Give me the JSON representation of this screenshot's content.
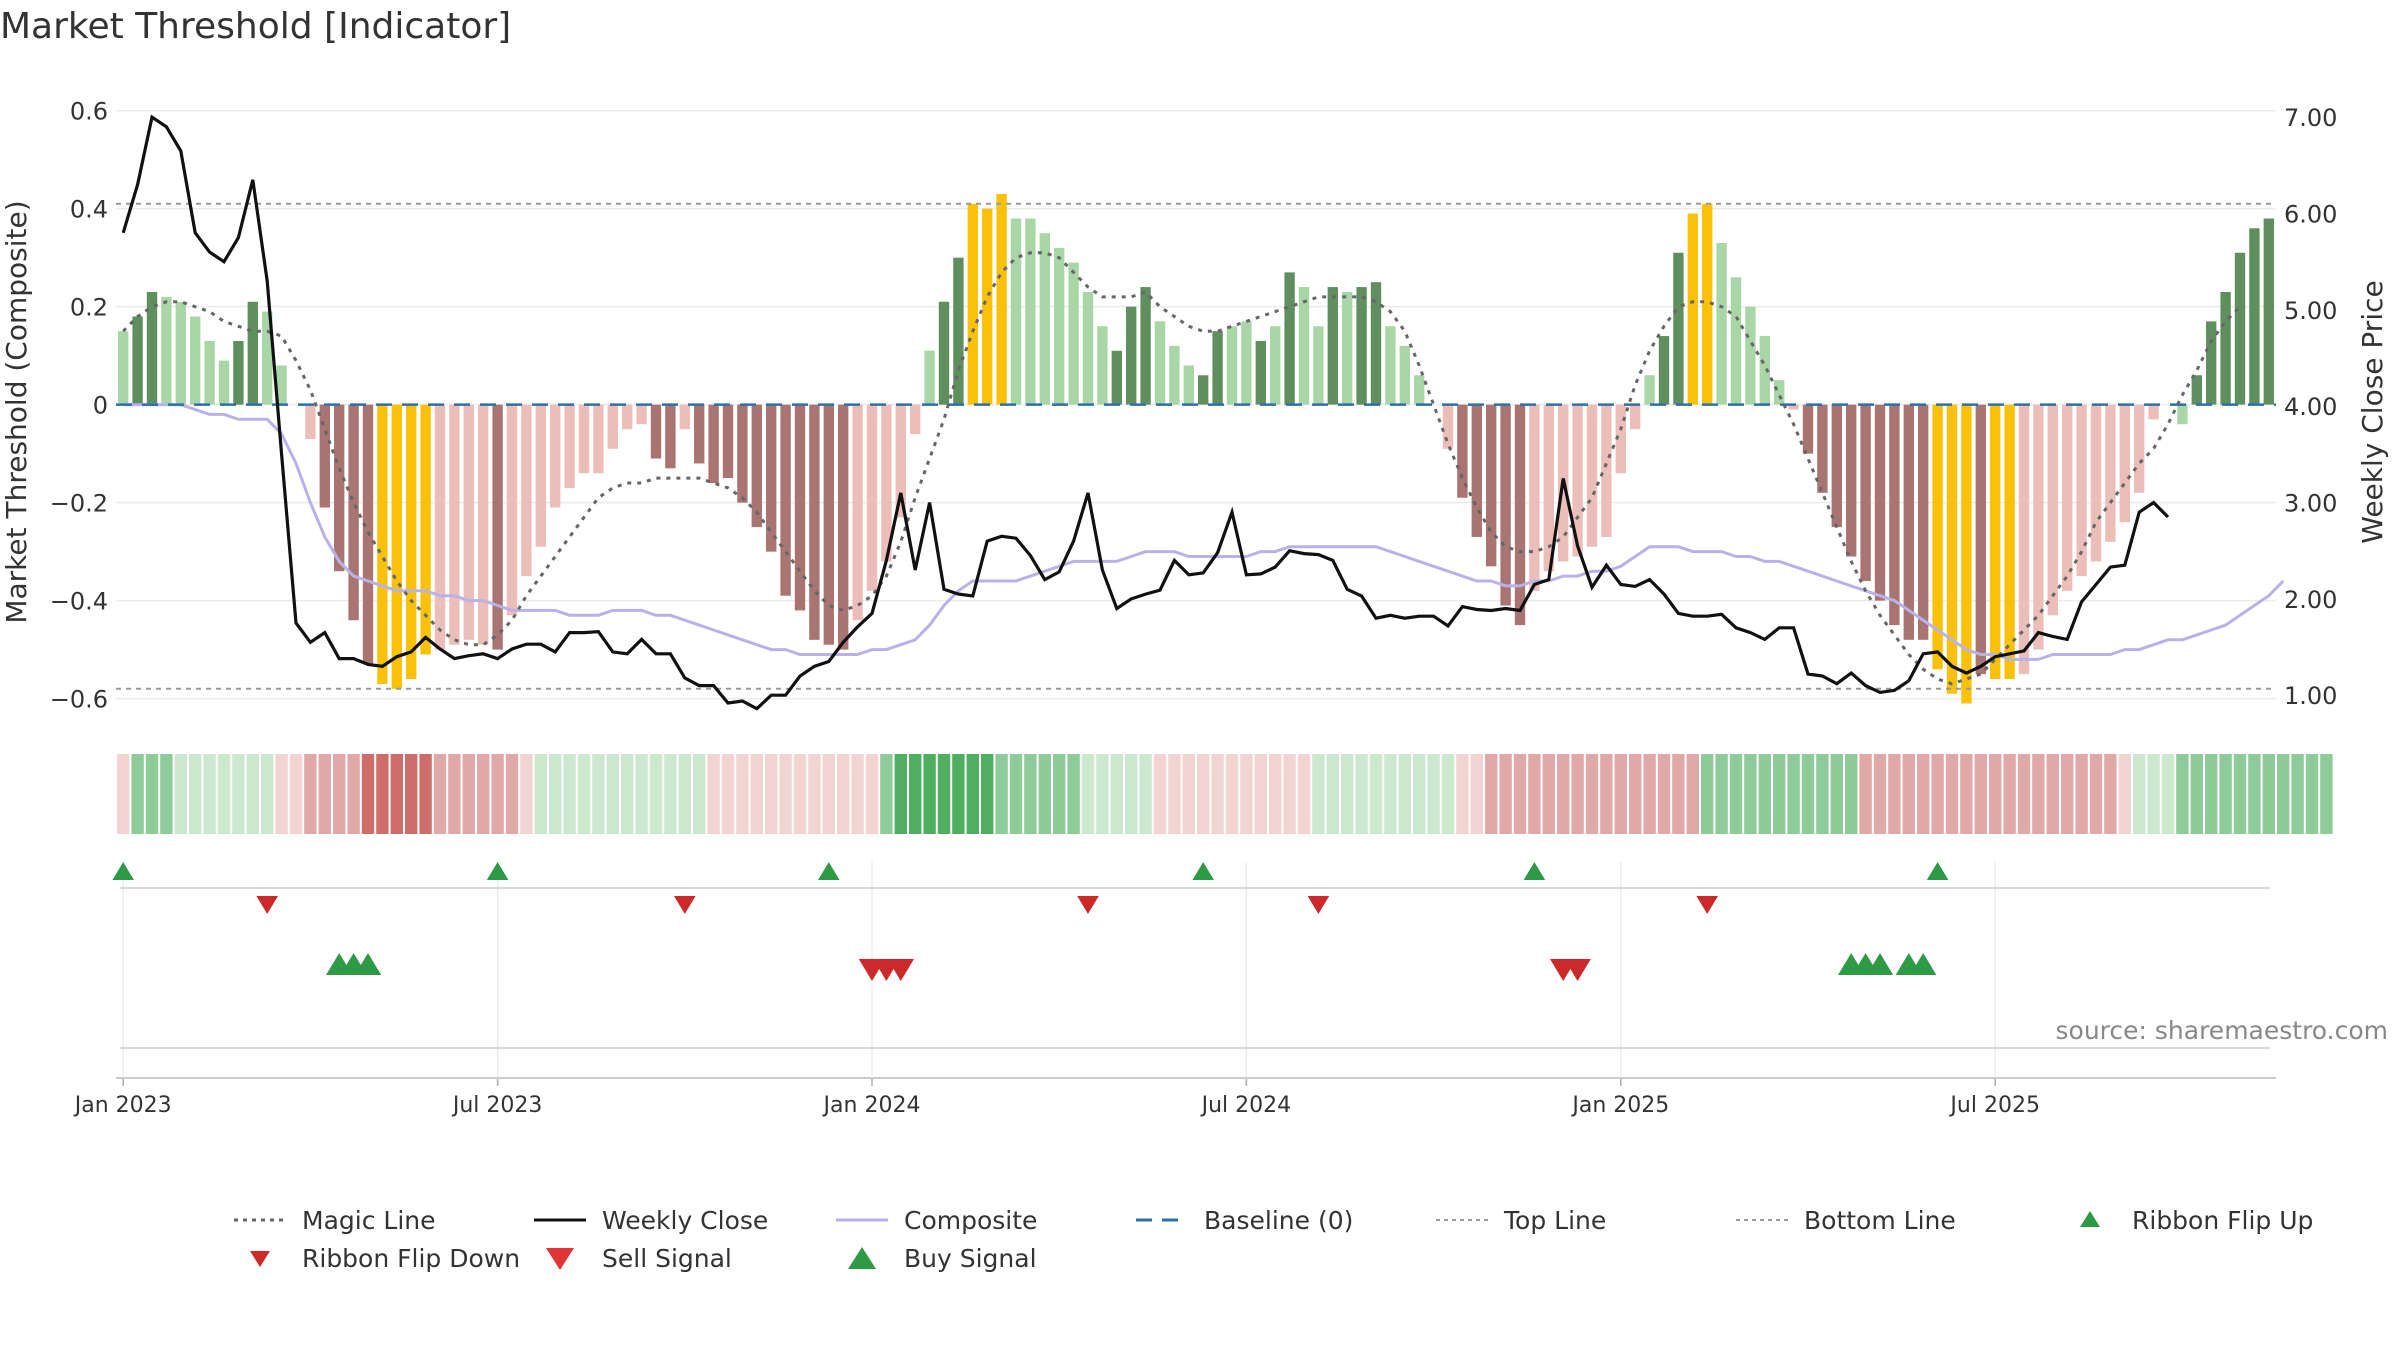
{
  "title": "Market Threshold [Indicator]",
  "source": "source: sharemaestro.com",
  "colors": {
    "dark_green": "#5f8f5f",
    "light_green": "#a9d6a6",
    "dark_red": "#a87572",
    "light_red": "#ebbeba",
    "yellow": "#f9c10a",
    "magic": "#666666",
    "close": "#111111",
    "composite": "#b9b2e8",
    "baseline": "#2f6fa8",
    "thresh": "#999999",
    "up": "#2e9a46",
    "down": "#cc2a2a"
  },
  "legend": [
    {
      "key": "magic",
      "label": "Magic Line"
    },
    {
      "key": "close",
      "label": "Weekly Close"
    },
    {
      "key": "composite",
      "label": "Composite"
    },
    {
      "key": "baseline",
      "label": "Baseline (0)"
    },
    {
      "key": "top",
      "label": "Top Line"
    },
    {
      "key": "bottom",
      "label": "Bottom Line"
    },
    {
      "key": "flip_up",
      "label": "Ribbon Flip Up"
    },
    {
      "key": "flip_down",
      "label": "Ribbon Flip Down"
    },
    {
      "key": "sell",
      "label": "Sell Signal"
    },
    {
      "key": "buy",
      "label": "Buy Signal"
    }
  ],
  "chart_data": {
    "type": "bar",
    "title": "Market Threshold [Indicator]",
    "ylabel": "Market Threshold (Composite)",
    "y2label": "Weekly Close Price",
    "ylim": [
      -0.66,
      0.63
    ],
    "y2lim": [
      0.66,
      7.22
    ],
    "y_ticks": [
      {
        "value": 0.6,
        "label": "0.6"
      },
      {
        "value": 0.4,
        "label": "0.4"
      },
      {
        "value": 0.2,
        "label": "0.2"
      },
      {
        "value": 0,
        "label": "0"
      },
      {
        "value": -0.2,
        "label": "−0.2"
      },
      {
        "value": -0.4,
        "label": "−0.4"
      },
      {
        "value": -0.6,
        "label": "−0.6"
      }
    ],
    "y2_ticks": [
      {
        "value": 7,
        "label": "7.00"
      },
      {
        "value": 6,
        "label": "6.00"
      },
      {
        "value": 5,
        "label": "5.00"
      },
      {
        "value": 4,
        "label": "4.00"
      },
      {
        "value": 3,
        "label": "3.00"
      },
      {
        "value": 2,
        "label": "2.00"
      },
      {
        "value": 1,
        "label": "1.00"
      }
    ],
    "x_ticks": [
      {
        "week": 1,
        "label": "Jan 2023"
      },
      {
        "week": 27,
        "label": "Jul 2023"
      },
      {
        "week": 53,
        "label": "Jan 2024"
      },
      {
        "week": 79,
        "label": "Jul 2024"
      },
      {
        "week": 105,
        "label": "Jan 2025"
      },
      {
        "week": 131,
        "label": "Jul 2025"
      }
    ],
    "top_line": 0.41,
    "bottom_line": -0.58,
    "baseline": 0,
    "bars": [
      0.15,
      0.18,
      0.23,
      0.22,
      0.21,
      0.18,
      0.13,
      0.09,
      0.13,
      0.21,
      0.19,
      0.08,
      0,
      -0.07,
      -0.21,
      -0.34,
      -0.44,
      -0.53,
      -0.57,
      -0.58,
      -0.56,
      -0.51,
      -0.5,
      -0.49,
      -0.48,
      -0.49,
      -0.5,
      -0.43,
      -0.35,
      -0.29,
      -0.21,
      -0.17,
      -0.14,
      -0.14,
      -0.09,
      -0.05,
      -0.04,
      -0.11,
      -0.13,
      -0.05,
      -0.12,
      -0.16,
      -0.15,
      -0.2,
      -0.25,
      -0.3,
      -0.39,
      -0.42,
      -0.48,
      -0.49,
      -0.5,
      -0.44,
      -0.38,
      -0.32,
      -0.23,
      -0.06,
      0.11,
      0.21,
      0.3,
      0.41,
      0.4,
      0.43,
      0.38,
      0.38,
      0.35,
      0.32,
      0.29,
      0.23,
      0.16,
      0.11,
      0.2,
      0.24,
      0.17,
      0.12,
      0.08,
      0.06,
      0.15,
      0.16,
      0.17,
      0.13,
      0.16,
      0.27,
      0.24,
      0.16,
      0.24,
      0.23,
      0.24,
      0.25,
      0.16,
      0.12,
      0.06,
      0,
      -0.09,
      -0.19,
      -0.27,
      -0.33,
      -0.41,
      -0.45,
      -0.38,
      -0.34,
      -0.32,
      -0.31,
      -0.29,
      -0.27,
      -0.14,
      -0.05,
      0.06,
      0.14,
      0.31,
      0.39,
      0.41,
      0.33,
      0.26,
      0.2,
      0.14,
      0.05,
      -0.01,
      -0.1,
      -0.18,
      -0.25,
      -0.31,
      -0.36,
      -0.4,
      -0.45,
      -0.48,
      -0.48,
      -0.54,
      -0.59,
      -0.61,
      -0.55,
      -0.56,
      -0.56,
      -0.55,
      -0.5,
      -0.43,
      -0.38,
      -0.35,
      -0.32,
      -0.28,
      -0.24,
      -0.18,
      -0.03,
      0,
      -0.04,
      0.06,
      0.17,
      0.23,
      0.31,
      0.36,
      0.38
    ],
    "bar_colors": [
      "lg",
      "dg",
      "dg",
      "lg",
      "lg",
      "lg",
      "lg",
      "lg",
      "dg",
      "dg",
      "lg",
      "lg",
      "lr",
      "lr",
      "dr",
      "dr",
      "dr",
      "dr",
      "y",
      "y",
      "y",
      "y",
      "lr",
      "lr",
      "lr",
      "lr",
      "dr",
      "lr",
      "lr",
      "lr",
      "lr",
      "lr",
      "lr",
      "lr",
      "lr",
      "lr",
      "lr",
      "dr",
      "dr",
      "lr",
      "dr",
      "dr",
      "dr",
      "dr",
      "dr",
      "dr",
      "dr",
      "dr",
      "dr",
      "dr",
      "dr",
      "lr",
      "lr",
      "lr",
      "lr",
      "lr",
      "lg",
      "dg",
      "dg",
      "y",
      "y",
      "y",
      "lg",
      "lg",
      "lg",
      "lg",
      "lg",
      "lg",
      "lg",
      "dg",
      "dg",
      "dg",
      "lg",
      "lg",
      "lg",
      "dg",
      "dg",
      "lg",
      "lg",
      "dg",
      "lg",
      "dg",
      "lg",
      "lg",
      "dg",
      "lg",
      "dg",
      "dg",
      "lg",
      "lg",
      "lg",
      "lr",
      "lr",
      "dr",
      "dr",
      "dr",
      "dr",
      "dr",
      "lr",
      "lr",
      "lr",
      "lr",
      "lr",
      "lr",
      "lr",
      "lr",
      "lg",
      "dg",
      "dg",
      "y",
      "y",
      "lg",
      "lg",
      "lg",
      "lg",
      "lg",
      "lr",
      "dr",
      "dr",
      "dr",
      "dr",
      "dr",
      "dr",
      "dr",
      "dr",
      "dr",
      "y",
      "y",
      "y",
      "dr",
      "y",
      "y",
      "lr",
      "lr",
      "lr",
      "lr",
      "lr",
      "lr",
      "lr",
      "lr",
      "lr",
      "lr",
      "lr",
      "lg",
      "dg",
      "dg",
      "dg",
      "dg",
      "dg",
      "dg"
    ],
    "series": [
      {
        "name": "Magic Line",
        "values": [
          0.15,
          0.18,
          0.2,
          0.21,
          0.21,
          0.2,
          0.19,
          0.17,
          0.16,
          0.15,
          0.15,
          0.14,
          0.09,
          0.03,
          -0.05,
          -0.13,
          -0.2,
          -0.26,
          -0.31,
          -0.36,
          -0.4,
          -0.43,
          -0.46,
          -0.48,
          -0.49,
          -0.49,
          -0.47,
          -0.44,
          -0.39,
          -0.35,
          -0.31,
          -0.27,
          -0.23,
          -0.19,
          -0.17,
          -0.16,
          -0.16,
          -0.15,
          -0.15,
          -0.15,
          -0.15,
          -0.16,
          -0.17,
          -0.19,
          -0.22,
          -0.26,
          -0.3,
          -0.34,
          -0.38,
          -0.41,
          -0.42,
          -0.41,
          -0.39,
          -0.35,
          -0.28,
          -0.19,
          -0.11,
          -0.03,
          0.07,
          0.15,
          0.22,
          0.27,
          0.3,
          0.31,
          0.31,
          0.3,
          0.27,
          0.24,
          0.22,
          0.22,
          0.22,
          0.23,
          0.2,
          0.18,
          0.16,
          0.15,
          0.15,
          0.16,
          0.17,
          0.18,
          0.19,
          0.2,
          0.21,
          0.22,
          0.22,
          0.22,
          0.22,
          0.21,
          0.19,
          0.15,
          0.08,
          0.0,
          -0.08,
          -0.15,
          -0.21,
          -0.26,
          -0.29,
          -0.3,
          -0.3,
          -0.29,
          -0.27,
          -0.23,
          -0.19,
          -0.12,
          -0.05,
          0.04,
          0.11,
          0.16,
          0.2,
          0.21,
          0.21,
          0.2,
          0.18,
          0.13,
          0.08,
          0.02,
          -0.04,
          -0.11,
          -0.18,
          -0.25,
          -0.32,
          -0.38,
          -0.43,
          -0.47,
          -0.51,
          -0.54,
          -0.56,
          -0.57,
          -0.56,
          -0.55,
          -0.52,
          -0.49,
          -0.46,
          -0.43,
          -0.39,
          -0.35,
          -0.3,
          -0.24,
          -0.2,
          -0.16,
          -0.12,
          -0.09,
          -0.04,
          0.02,
          0.07,
          0.13,
          0.17,
          0.2
        ]
      },
      {
        "name": "Composite",
        "values": [
          0.0,
          0.0,
          0.0,
          0.0,
          0.0,
          -0.01,
          -0.02,
          -0.02,
          -0.03,
          -0.03,
          -0.03,
          -0.06,
          -0.12,
          -0.2,
          -0.27,
          -0.32,
          -0.35,
          -0.36,
          -0.37,
          -0.38,
          -0.38,
          -0.38,
          -0.39,
          -0.39,
          -0.4,
          -0.4,
          -0.41,
          -0.42,
          -0.42,
          -0.42,
          -0.42,
          -0.43,
          -0.43,
          -0.43,
          -0.42,
          -0.42,
          -0.42,
          -0.43,
          -0.43,
          -0.44,
          -0.45,
          -0.46,
          -0.47,
          -0.48,
          -0.49,
          -0.5,
          -0.5,
          -0.51,
          -0.51,
          -0.51,
          -0.51,
          -0.51,
          -0.5,
          -0.5,
          -0.49,
          -0.48,
          -0.45,
          -0.41,
          -0.38,
          -0.36,
          -0.36,
          -0.36,
          -0.36,
          -0.35,
          -0.34,
          -0.33,
          -0.32,
          -0.32,
          -0.32,
          -0.32,
          -0.31,
          -0.3,
          -0.3,
          -0.3,
          -0.31,
          -0.31,
          -0.31,
          -0.31,
          -0.31,
          -0.3,
          -0.3,
          -0.29,
          -0.29,
          -0.29,
          -0.29,
          -0.29,
          -0.29,
          -0.29,
          -0.3,
          -0.31,
          -0.32,
          -0.33,
          -0.34,
          -0.35,
          -0.36,
          -0.36,
          -0.37,
          -0.37,
          -0.36,
          -0.36,
          -0.35,
          -0.35,
          -0.34,
          -0.34,
          -0.33,
          -0.31,
          -0.29,
          -0.29,
          -0.29,
          -0.3,
          -0.3,
          -0.3,
          -0.31,
          -0.31,
          -0.32,
          -0.32,
          -0.33,
          -0.34,
          -0.35,
          -0.36,
          -0.37,
          -0.38,
          -0.39,
          -0.4,
          -0.42,
          -0.44,
          -0.46,
          -0.48,
          -0.5,
          -0.51,
          -0.51,
          -0.52,
          -0.52,
          -0.52,
          -0.51,
          -0.51,
          -0.51,
          -0.51,
          -0.51,
          -0.5,
          -0.5,
          -0.49,
          -0.48,
          -0.48,
          -0.47,
          -0.46,
          -0.45,
          -0.43,
          -0.41,
          -0.39,
          -0.36
        ]
      }
    ],
    "weekly_close": [
      5.8,
      6.3,
      7.0,
      6.9,
      6.65,
      5.8,
      5.6,
      5.5,
      5.75,
      6.35,
      5.3,
      3.5,
      1.75,
      1.55,
      1.65,
      1.38,
      1.38,
      1.32,
      1.3,
      1.4,
      1.45,
      1.6,
      1.48,
      1.38,
      1.41,
      1.43,
      1.38,
      1.48,
      1.53,
      1.53,
      1.45,
      1.65,
      1.65,
      1.66,
      1.45,
      1.43,
      1.58,
      1.43,
      1.43,
      1.18,
      1.1,
      1.1,
      0.92,
      0.94,
      0.86,
      1.0,
      1.0,
      1.2,
      1.3,
      1.35,
      1.55,
      1.71,
      1.85,
      2.4,
      3.1,
      2.3,
      3.0,
      2.1,
      2.05,
      2.03,
      2.6,
      2.65,
      2.63,
      2.45,
      2.2,
      2.28,
      2.6,
      3.1,
      2.3,
      1.9,
      2.0,
      2.05,
      2.09,
      2.4,
      2.25,
      2.27,
      2.48,
      2.9,
      2.25,
      2.26,
      2.33,
      2.5,
      2.47,
      2.46,
      2.4,
      2.1,
      2.03,
      1.8,
      1.83,
      1.8,
      1.82,
      1.82,
      1.72,
      1.92,
      1.89,
      1.88,
      1.9,
      1.88,
      2.15,
      2.2,
      3.25,
      2.55,
      2.12,
      2.35,
      2.15,
      2.13,
      2.2,
      2.05,
      1.85,
      1.82,
      1.82,
      1.84,
      1.7,
      1.65,
      1.58,
      1.7,
      1.7,
      1.22,
      1.2,
      1.12,
      1.23,
      1.1,
      1.03,
      1.05,
      1.15,
      1.43,
      1.45,
      1.3,
      1.23,
      1.3,
      1.4,
      1.43,
      1.46,
      1.65,
      1.61,
      1.58,
      1.97,
      2.15,
      2.33,
      2.35,
      2.9,
      3.0,
      2.85
    ],
    "ribbon": [
      "r1",
      "g2",
      "g2",
      "g2",
      "g1",
      "g1",
      "g1",
      "g1",
      "g1",
      "g1",
      "g1",
      "r1",
      "r1",
      "r2",
      "r2",
      "r2",
      "r2",
      "r3",
      "r3",
      "r3",
      "r3",
      "r3",
      "r2",
      "r2",
      "r2",
      "r2",
      "r2",
      "r2",
      "r1",
      "g1",
      "g1",
      "g1",
      "g1",
      "g1",
      "g1",
      "g1",
      "g1",
      "g1",
      "g1",
      "g1",
      "g1",
      "r1",
      "r1",
      "r1",
      "r1",
      "r1",
      "r1",
      "r1",
      "r1",
      "r1",
      "r1",
      "r1",
      "r1",
      "g2",
      "g3",
      "g3",
      "g3",
      "g3",
      "g3",
      "g3",
      "g3",
      "g2",
      "g2",
      "g2",
      "g2",
      "g2",
      "g2",
      "g1",
      "g1",
      "g1",
      "g1",
      "g1",
      "r1",
      "r1",
      "r1",
      "r1",
      "r1",
      "r1",
      "r1",
      "r1",
      "r1",
      "r1",
      "r1",
      "g1",
      "g1",
      "g1",
      "g1",
      "g1",
      "g1",
      "g1",
      "g1",
      "g1",
      "g1",
      "r1",
      "r1",
      "r2",
      "r2",
      "r2",
      "r2",
      "r2",
      "r2",
      "r2",
      "r2",
      "r2",
      "r2",
      "r2",
      "r2",
      "r2",
      "r2",
      "r2",
      "g2",
      "g2",
      "g2",
      "g2",
      "g2",
      "g2",
      "g2",
      "g2",
      "g2",
      "g2",
      "g2",
      "r2",
      "r2",
      "r2",
      "r2",
      "r2",
      "r2",
      "r2",
      "r2",
      "r2",
      "r2",
      "r2",
      "r2",
      "r2",
      "r2",
      "r2",
      "r2",
      "r2",
      "r2",
      "r1",
      "g1",
      "g1",
      "g1",
      "g2",
      "g2",
      "g2",
      "g2",
      "g2",
      "g2",
      "g2",
      "g2",
      "g2",
      "g2",
      "g2"
    ],
    "ribbon_flip_up_weeks": [
      1,
      27,
      50,
      76,
      99,
      127
    ],
    "ribbon_flip_down_weeks": [
      11,
      40,
      68,
      84,
      111
    ],
    "buy_signal_weeks": [
      16,
      17,
      18,
      121,
      122,
      123,
      125,
      126
    ],
    "sell_signal_weeks": [
      53,
      54,
      55,
      101,
      102
    ]
  }
}
